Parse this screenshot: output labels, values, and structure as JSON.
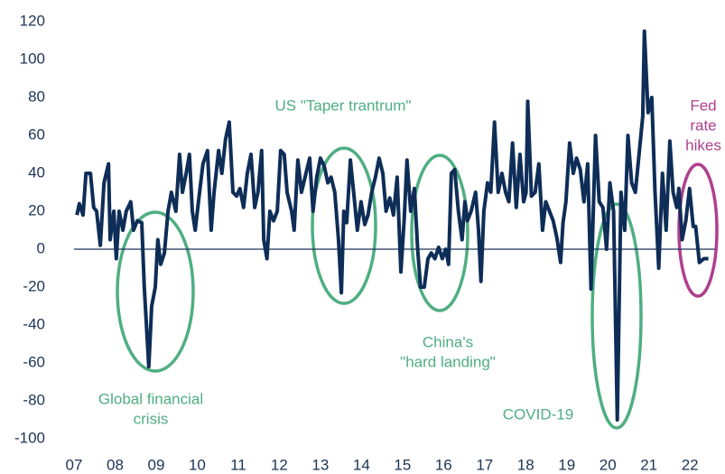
{
  "chart_data": {
    "type": "line",
    "x": [
      2007.07,
      2007.13,
      2007.22,
      2007.29,
      2007.4,
      2007.48,
      2007.55,
      2007.64,
      2007.73,
      2007.84,
      2007.88,
      2007.97,
      2008.03,
      2008.1,
      2008.19,
      2008.27,
      2008.38,
      2008.45,
      2008.54,
      2008.65,
      2008.71,
      2008.82,
      2008.89,
      2008.98,
      2009.04,
      2009.11,
      2009.2,
      2009.29,
      2009.37,
      2009.48,
      2009.57,
      2009.64,
      2009.73,
      2009.81,
      2009.88,
      2009.95,
      2010.03,
      2010.14,
      2010.25,
      2010.34,
      2010.41,
      2010.52,
      2010.6,
      2010.69,
      2010.78,
      2010.87,
      2010.96,
      2011.04,
      2011.13,
      2011.22,
      2011.31,
      2011.4,
      2011.48,
      2011.57,
      2011.62,
      2011.7,
      2011.77,
      2011.86,
      2011.95,
      2012.03,
      2012.12,
      2012.19,
      2012.3,
      2012.36,
      2012.45,
      2012.54,
      2012.65,
      2012.74,
      2012.82,
      2012.91,
      2013.0,
      2013.09,
      2013.18,
      2013.26,
      2013.35,
      2013.44,
      2013.51,
      2013.57,
      2013.64,
      2013.73,
      2013.81,
      2013.9,
      2013.99,
      2014.08,
      2014.16,
      2014.25,
      2014.34,
      2014.43,
      2014.52,
      2014.6,
      2014.69,
      2014.78,
      2014.87,
      2014.96,
      2015.04,
      2015.11,
      2015.2,
      2015.29,
      2015.37,
      2015.44,
      2015.53,
      2015.62,
      2015.7,
      2015.79,
      2015.88,
      2015.97,
      2016.05,
      2016.12,
      2016.19,
      2016.27,
      2016.36,
      2016.45,
      2016.52,
      2016.58,
      2016.67,
      2016.78,
      2016.85,
      2016.91,
      2016.98,
      2017.07,
      2017.15,
      2017.24,
      2017.33,
      2017.42,
      2017.51,
      2017.59,
      2017.68,
      2017.77,
      2017.86,
      2017.95,
      2018.01,
      2018.05,
      2018.14,
      2018.23,
      2018.32,
      2018.41,
      2018.49,
      2018.58,
      2018.67,
      2018.76,
      2018.85,
      2018.91,
      2018.98,
      2019.07,
      2019.16,
      2019.24,
      2019.33,
      2019.42,
      2019.51,
      2019.59,
      2019.7,
      2019.79,
      2019.88,
      2019.97,
      2020.05,
      2020.14,
      2020.23,
      2020.32,
      2020.41,
      2020.49,
      2020.58,
      2020.67,
      2020.76,
      2020.85,
      2020.89,
      2020.98,
      2021.07,
      2021.15,
      2021.24,
      2021.33,
      2021.42,
      2021.51,
      2021.59,
      2021.68,
      2021.73,
      2021.81,
      2021.9,
      2021.99,
      2022.08,
      2022.14,
      2022.23,
      2022.34,
      2022.45
    ],
    "series": [
      {
        "color": "#0e2d57",
        "values": [
          18,
          24,
          18,
          40,
          40,
          22,
          20,
          2,
          35,
          45,
          5,
          20,
          -5,
          20,
          10,
          20,
          25,
          10,
          15,
          14,
          -20,
          -62,
          -30,
          -20,
          5,
          -8,
          -2,
          20,
          30,
          20,
          50,
          30,
          40,
          50,
          20,
          10,
          25,
          45,
          52,
          10,
          30,
          52,
          40,
          58,
          67,
          30,
          28,
          32,
          22,
          40,
          50,
          22,
          30,
          52,
          5,
          -5,
          20,
          15,
          20,
          52,
          50,
          30,
          20,
          10,
          47,
          30,
          40,
          48,
          20,
          38,
          48,
          44,
          35,
          38,
          30,
          5,
          -23,
          20,
          14,
          47,
          30,
          10,
          25,
          13,
          18,
          30,
          38,
          48,
          40,
          20,
          27,
          18,
          38,
          -12,
          15,
          47,
          20,
          32,
          0,
          -20,
          -20,
          -5,
          -2,
          -5,
          1,
          -5,
          0,
          -8,
          40,
          42,
          20,
          5,
          25,
          15,
          20,
          30,
          10,
          -17,
          20,
          35,
          30,
          67,
          30,
          40,
          30,
          25,
          56,
          22,
          50,
          25,
          30,
          78,
          28,
          30,
          45,
          10,
          25,
          20,
          15,
          6,
          -7,
          14,
          25,
          56,
          40,
          48,
          42,
          25,
          45,
          -21,
          60,
          25,
          22,
          0,
          35,
          20,
          -90,
          30,
          10,
          60,
          35,
          30,
          50,
          70,
          115,
          72,
          80,
          30,
          -10,
          40,
          10,
          57,
          30,
          22,
          32,
          5,
          15,
          32,
          12,
          12,
          -7,
          -5,
          -5
        ]
      }
    ],
    "xlim": [
      2007,
      2022.7
    ],
    "xticks": [
      {
        "value": 2007,
        "label": "07"
      },
      {
        "value": 2008,
        "label": "08"
      },
      {
        "value": 2009,
        "label": "09"
      },
      {
        "value": 2010,
        "label": "10"
      },
      {
        "value": 2011,
        "label": "11"
      },
      {
        "value": 2012,
        "label": "12"
      },
      {
        "value": 2013,
        "label": "13"
      },
      {
        "value": 2014,
        "label": "14"
      },
      {
        "value": 2015,
        "label": "15"
      },
      {
        "value": 2016,
        "label": "16"
      },
      {
        "value": 2017,
        "label": "17"
      },
      {
        "value": 2018,
        "label": "18"
      },
      {
        "value": 2019,
        "label": "19"
      },
      {
        "value": 2020,
        "label": "20"
      },
      {
        "value": 2021,
        "label": "21"
      },
      {
        "value": 2022,
        "label": "22"
      }
    ],
    "ylim": [
      -100,
      120
    ],
    "yticks": [
      -100,
      -80,
      -60,
      -40,
      -20,
      0,
      20,
      40,
      60,
      80,
      100,
      120
    ],
    "annotations": [
      {
        "lines": [
          "Global financial",
          "crisis"
        ],
        "color": "#4fae82"
      },
      {
        "lines": [
          "US \"Taper trantrum\""
        ],
        "color": "#4fae82"
      },
      {
        "lines": [
          "China's",
          "\"hard landing\""
        ],
        "color": "#4fae82"
      },
      {
        "lines": [
          "COVID-19"
        ],
        "color": "#4fae82"
      },
      {
        "lines": [
          "Fed",
          "rate",
          "hikes"
        ],
        "color": "#b03f8e"
      }
    ]
  }
}
